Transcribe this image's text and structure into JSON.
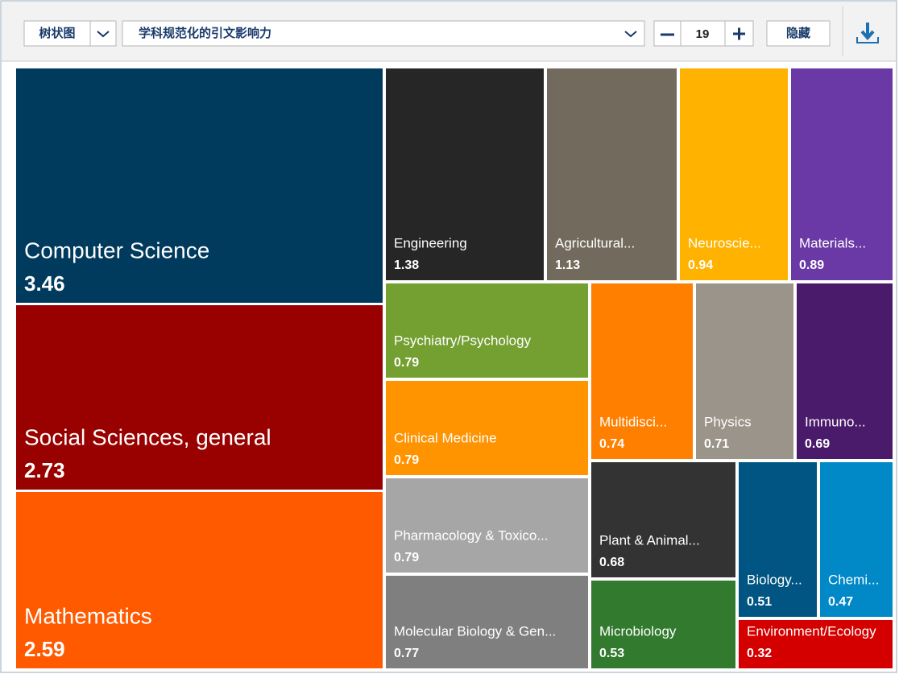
{
  "toolbar": {
    "view": "树状图",
    "metric": "学科规范化的引文影响力",
    "count": "19",
    "hide": "隐藏"
  },
  "chart_data": {
    "type": "treemap",
    "categories": [
      "Computer Science",
      "Social Sciences, general",
      "Mathematics",
      "Engineering",
      "Agricultural...",
      "Neuroscie...",
      "Materials...",
      "Psychiatry/Psychology",
      "Clinical Medicine",
      "Pharmacology & Toxico...",
      "Molecular Biology & Gen...",
      "Multidisci...",
      "Physics",
      "Immuno...",
      "Plant & Animal...",
      "Microbiology",
      "Biology...",
      "Chemi...",
      "Environment/Ecology"
    ],
    "values": [
      3.46,
      2.73,
      2.59,
      1.38,
      1.13,
      0.94,
      0.89,
      0.79,
      0.79,
      0.79,
      0.77,
      0.74,
      0.71,
      0.69,
      0.68,
      0.53,
      0.51,
      0.47,
      0.32
    ],
    "colors": [
      "#003a5d",
      "#990000",
      "#ff5a00",
      "#262626",
      "#736a5e",
      "#ffb300",
      "#6a39a6",
      "#74a032",
      "#ff9300",
      "#a6a6a6",
      "#7f7f7f",
      "#ff7f00",
      "#9b948a",
      "#4a1a6b",
      "#333333",
      "#327a2e",
      "#005582",
      "#0088c7",
      "#d40000"
    ]
  }
}
